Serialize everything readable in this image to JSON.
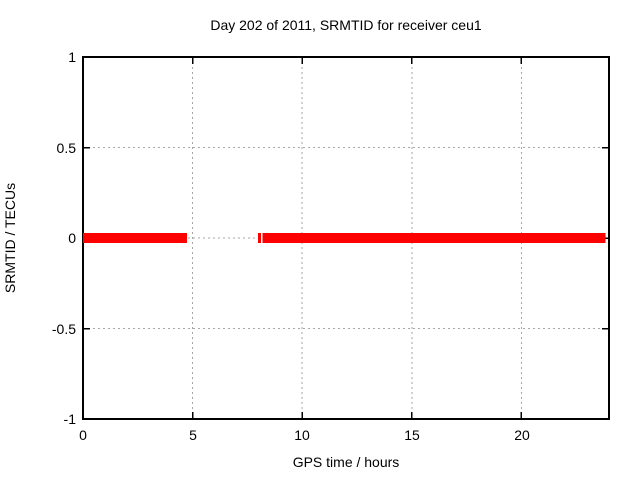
{
  "window": {
    "background": "#ffffff"
  },
  "chart_data": {
    "type": "line",
    "title": "Day 202 of 2011, SRMTID for receiver ceu1",
    "xlabel": "GPS time / hours",
    "ylabel": "SRMTID / TECUs",
    "xlim": [
      0,
      24
    ],
    "ylim": [
      -1,
      1
    ],
    "xticks": [
      0,
      5,
      10,
      15,
      20
    ],
    "yticks": [
      -1,
      -0.5,
      0,
      0.5,
      1
    ],
    "grid": true,
    "legend": "none",
    "colors": {
      "line": "#ff0000",
      "grid": "#a6a6a6",
      "border": "#000000",
      "text": "#000000"
    },
    "series": [
      {
        "name": "SRMTID",
        "y_value": 0,
        "line_thickness_px": 10,
        "segments_hours": [
          [
            0,
            4.74
          ],
          [
            7.98,
            8.12
          ],
          [
            8.2,
            23.83
          ]
        ]
      }
    ]
  }
}
